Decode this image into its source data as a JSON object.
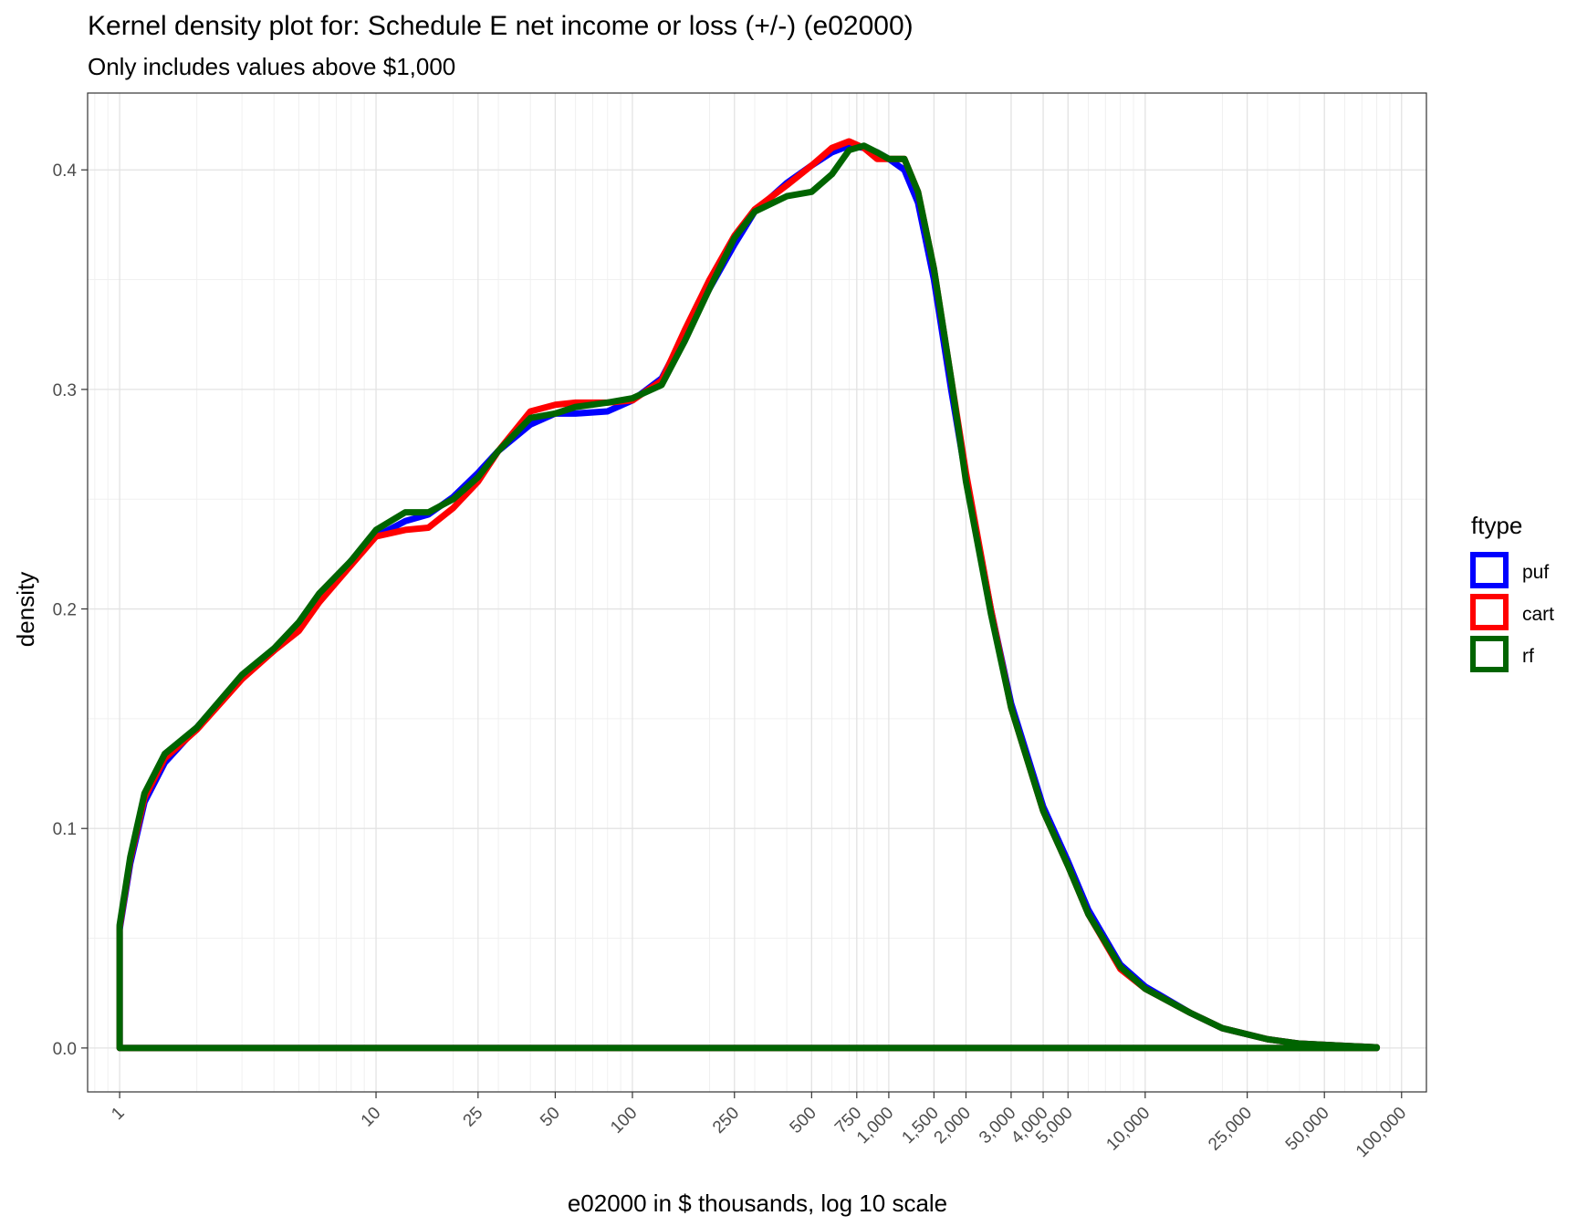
{
  "chart_data": {
    "type": "line",
    "title": "Kernel density plot for: Schedule E net income or loss (+/-) (e02000)",
    "subtitle": "Only includes values above $1,000",
    "xlabel": "e02000 in $ thousands, log 10 scale",
    "ylabel": "density",
    "x_scale": "log10",
    "xlim": [
      0.75,
      125000
    ],
    "ylim": [
      -0.02,
      0.435
    ],
    "grid": true,
    "x_ticks": [
      1,
      10,
      25,
      50,
      100,
      250,
      500,
      750,
      1000,
      1500,
      2000,
      3000,
      4000,
      5000,
      10000,
      25000,
      50000,
      100000
    ],
    "x_tick_labels": [
      "1",
      "10",
      "25",
      "50",
      "100",
      "250",
      "500",
      "750",
      "1,000",
      "1,500",
      "2,000",
      "3,000",
      "4,000",
      "5,000",
      "10,000",
      "25,000",
      "50,000",
      "100,000"
    ],
    "y_ticks": [
      0.0,
      0.1,
      0.2,
      0.3,
      0.4
    ],
    "y_tick_labels": [
      "0.0",
      "0.1",
      "0.2",
      "0.3",
      "0.4"
    ],
    "legend": {
      "title": "ftype",
      "placement": "right"
    },
    "series": [
      {
        "name": "puf",
        "color": "#0000ff",
        "x": [
          1,
          1,
          1.1,
          1.25,
          1.5,
          2,
          3,
          4,
          5,
          6,
          8,
          10,
          13,
          16,
          20,
          25,
          30,
          40,
          50,
          60,
          80,
          100,
          130,
          160,
          200,
          250,
          300,
          400,
          500,
          600,
          700,
          800,
          900,
          1000,
          1150,
          1300,
          1500,
          1750,
          2000,
          2500,
          3000,
          4000,
          5000,
          6000,
          8000,
          10000,
          15000,
          20000,
          30000,
          40000,
          60000,
          80000,
          80000,
          1
        ],
        "y": [
          0,
          0.054,
          0.084,
          0.112,
          0.13,
          0.146,
          0.169,
          0.181,
          0.193,
          0.205,
          0.222,
          0.233,
          0.24,
          0.243,
          0.251,
          0.262,
          0.272,
          0.284,
          0.289,
          0.289,
          0.29,
          0.295,
          0.305,
          0.325,
          0.346,
          0.366,
          0.381,
          0.394,
          0.402,
          0.408,
          0.411,
          0.41,
          0.408,
          0.405,
          0.4,
          0.385,
          0.35,
          0.3,
          0.26,
          0.2,
          0.157,
          0.11,
          0.085,
          0.063,
          0.038,
          0.028,
          0.016,
          0.009,
          0.004,
          0.002,
          0.001,
          0.0003,
          0,
          0
        ]
      },
      {
        "name": "cart",
        "color": "#ff0000",
        "x": [
          1,
          1,
          1.1,
          1.25,
          1.5,
          2,
          3,
          4,
          5,
          6,
          8,
          10,
          13,
          16,
          20,
          25,
          30,
          40,
          50,
          60,
          80,
          100,
          130,
          160,
          200,
          250,
          300,
          400,
          500,
          600,
          700,
          800,
          900,
          1000,
          1150,
          1300,
          1500,
          1750,
          2000,
          2500,
          3000,
          4000,
          5000,
          6000,
          8000,
          10000,
          15000,
          20000,
          30000,
          40000,
          60000,
          80000,
          80000,
          1
        ],
        "y": [
          0,
          0.055,
          0.086,
          0.114,
          0.132,
          0.145,
          0.168,
          0.181,
          0.19,
          0.203,
          0.22,
          0.233,
          0.236,
          0.237,
          0.246,
          0.258,
          0.272,
          0.29,
          0.293,
          0.294,
          0.294,
          0.295,
          0.304,
          0.327,
          0.35,
          0.37,
          0.382,
          0.393,
          0.402,
          0.41,
          0.413,
          0.41,
          0.405,
          0.405,
          0.405,
          0.39,
          0.355,
          0.305,
          0.262,
          0.2,
          0.155,
          0.108,
          0.083,
          0.061,
          0.036,
          0.027,
          0.016,
          0.009,
          0.004,
          0.002,
          0.001,
          0.0003,
          0,
          0
        ]
      },
      {
        "name": "rf",
        "color": "#006400",
        "x": [
          1,
          1,
          1.1,
          1.25,
          1.5,
          2,
          3,
          4,
          5,
          6,
          8,
          10,
          13,
          16,
          20,
          25,
          30,
          40,
          50,
          60,
          80,
          100,
          130,
          160,
          200,
          250,
          300,
          400,
          500,
          600,
          700,
          800,
          900,
          1000,
          1150,
          1300,
          1500,
          1750,
          2000,
          2500,
          3000,
          4000,
          5000,
          6000,
          8000,
          10000,
          15000,
          20000,
          30000,
          40000,
          60000,
          80000,
          80000,
          1
        ],
        "y": [
          0,
          0.056,
          0.087,
          0.116,
          0.134,
          0.146,
          0.17,
          0.182,
          0.194,
          0.207,
          0.222,
          0.236,
          0.244,
          0.244,
          0.25,
          0.26,
          0.272,
          0.287,
          0.289,
          0.292,
          0.294,
          0.296,
          0.302,
          0.322,
          0.346,
          0.369,
          0.381,
          0.388,
          0.39,
          0.398,
          0.409,
          0.411,
          0.408,
          0.405,
          0.405,
          0.39,
          0.355,
          0.305,
          0.258,
          0.198,
          0.155,
          0.108,
          0.083,
          0.061,
          0.037,
          0.027,
          0.016,
          0.009,
          0.004,
          0.002,
          0.001,
          0.0003,
          0,
          0
        ]
      }
    ]
  }
}
